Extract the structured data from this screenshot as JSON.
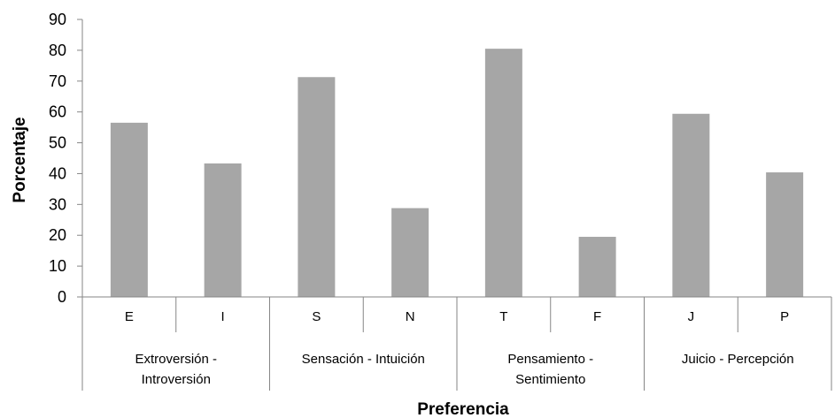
{
  "chart_data": {
    "type": "bar",
    "xlabel": "Preferencia",
    "ylabel": "Porcentaje",
    "ylim": [
      0,
      90
    ],
    "yticks": [
      0,
      10,
      20,
      30,
      40,
      50,
      60,
      70,
      80,
      90
    ],
    "grid": false,
    "legend": "none",
    "bar_color": "#a6a6a6",
    "categories": [
      "E",
      "I",
      "S",
      "N",
      "T",
      "F",
      "J",
      "P"
    ],
    "values": [
      56.5,
      43.3,
      71.3,
      28.8,
      80.5,
      19.5,
      59.4,
      40.4
    ],
    "groups": [
      {
        "label_lines": [
          "Extroversión -",
          "Introversión"
        ]
      },
      {
        "label_lines": [
          "Sensación - Intuición"
        ]
      },
      {
        "label_lines": [
          "Pensamiento -",
          "Sentimiento"
        ]
      },
      {
        "label_lines": [
          "Juicio - Percepción"
        ]
      }
    ]
  }
}
